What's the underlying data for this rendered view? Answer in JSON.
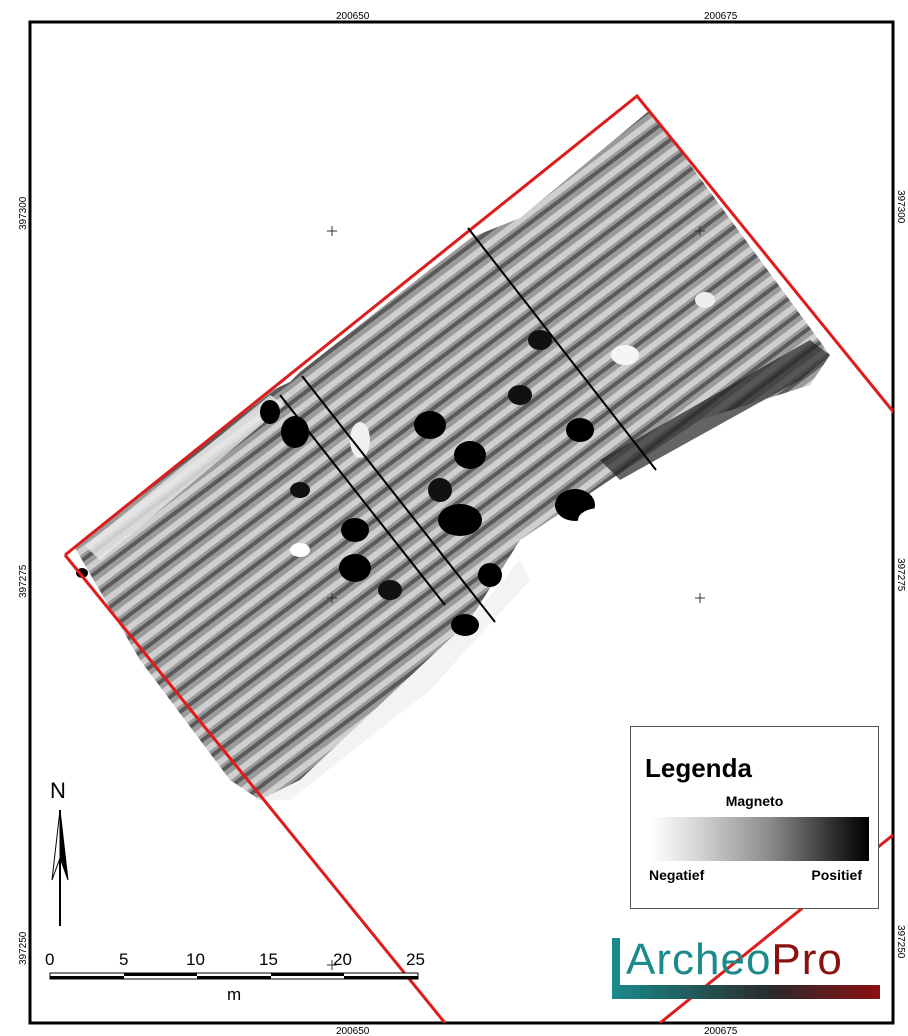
{
  "grid": {
    "x_labels": [
      "200650",
      "200675"
    ],
    "y_labels": [
      "397300",
      "397275",
      "397250"
    ]
  },
  "legend": {
    "title": "Legenda",
    "subtitle": "Magneto",
    "low_label": "Negatief",
    "high_label": "Positief"
  },
  "north_arrow": {
    "label": "N"
  },
  "scale_bar": {
    "ticks": [
      "0",
      "5",
      "10",
      "15",
      "20",
      "25"
    ],
    "unit": "m"
  },
  "logo": {
    "part1": "Archeo",
    "part2": "Pro",
    "color_primary": "#1a8a8a",
    "color_secondary": "#8b1010"
  },
  "colors": {
    "boundary": "#e01b1b",
    "frame": "#000000"
  }
}
